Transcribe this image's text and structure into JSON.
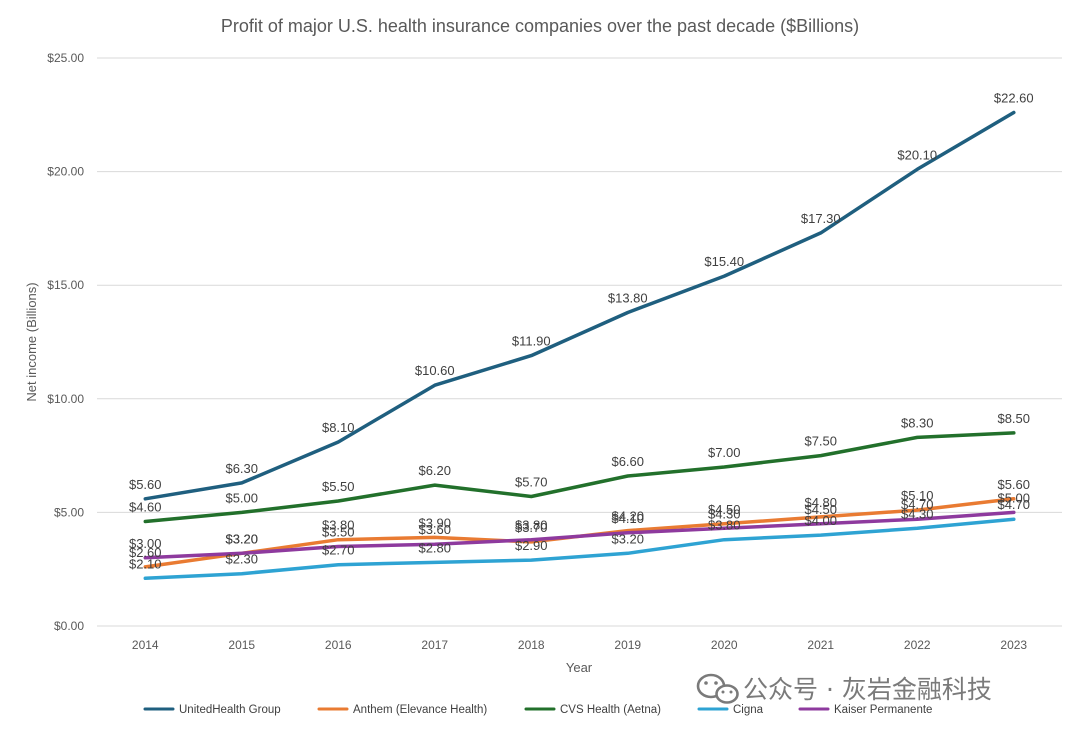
{
  "chart_data": {
    "type": "line",
    "title": "Profit of major U.S. health insurance companies over the past decade ($Billions)",
    "xlabel": "Year",
    "ylabel": "Net income (Billions)",
    "ylim": [
      0,
      25
    ],
    "yticks": [
      0,
      5,
      10,
      15,
      20,
      25
    ],
    "ytick_labels": [
      "$0.00",
      "$5.00",
      "$10.00",
      "$15.00",
      "$20.00",
      "$25.00"
    ],
    "categories": [
      "2014",
      "2015",
      "2016",
      "2017",
      "2018",
      "2019",
      "2020",
      "2021",
      "2022",
      "2023"
    ],
    "grid": true,
    "legend_position": "bottom",
    "series": [
      {
        "name": "UnitedHealth Group",
        "color": "#1f5f7f",
        "values": [
          5.6,
          6.3,
          8.1,
          10.6,
          11.9,
          13.8,
          15.4,
          17.3,
          20.1,
          22.6
        ],
        "labels": [
          "$5.60",
          "$6.30",
          "$8.10",
          "$10.60",
          "$11.90",
          "$13.80",
          "$15.40",
          "$17.30",
          "$20.10",
          "$22.60"
        ]
      },
      {
        "name": "Anthem (Elevance Health)",
        "color": "#e97b32",
        "values": [
          2.6,
          3.2,
          3.8,
          3.9,
          3.7,
          4.2,
          4.5,
          4.8,
          5.1,
          5.6
        ],
        "labels": [
          "$2.60",
          "$3.20",
          "$3.80",
          "$3.90",
          "$3.70",
          "$4.20",
          "$4.50",
          "$4.80",
          "$5.10",
          "$5.60"
        ]
      },
      {
        "name": "CVS Health (Aetna)",
        "color": "#22702b",
        "values": [
          4.6,
          5.0,
          5.5,
          6.2,
          5.7,
          6.6,
          7.0,
          7.5,
          8.3,
          8.5
        ],
        "labels": [
          "$4.60",
          "$5.00",
          "$5.50",
          "$6.20",
          "$5.70",
          "$6.60",
          "$7.00",
          "$7.50",
          "$8.30",
          "$8.50"
        ]
      },
      {
        "name": "Cigna",
        "color": "#2ea3d3",
        "values": [
          2.1,
          2.3,
          2.7,
          2.8,
          2.9,
          3.2,
          3.8,
          4.0,
          4.3,
          4.7
        ],
        "labels": [
          "$2.10",
          "$2.30",
          "$2.70",
          "$2.80",
          "$2.90",
          "$3.20",
          "$3.80",
          "$4.00",
          "$4.30",
          "$4.70"
        ]
      },
      {
        "name": "Kaiser Permanente",
        "color": "#8e3a9e",
        "values": [
          3.0,
          3.2,
          3.5,
          3.6,
          3.8,
          4.1,
          4.3,
          4.5,
          4.7,
          5.0
        ],
        "labels": [
          "$3.00",
          "$3.20",
          "$3.50",
          "$3.60",
          "$3.80",
          "$4.10",
          "$4.30",
          "$4.50",
          "$4.70",
          "$5.00"
        ]
      }
    ]
  },
  "watermark": {
    "text": "公众号 · 灰岩金融科技",
    "icon": "wechat-icon",
    "color": "#7a7a7a"
  }
}
